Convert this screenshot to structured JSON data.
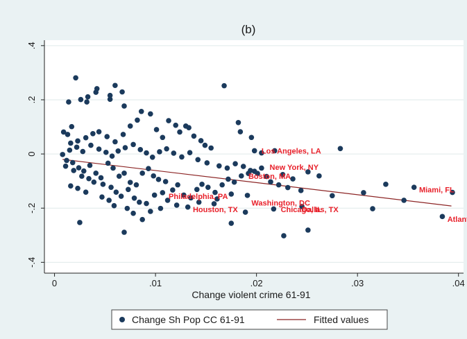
{
  "chart_data": {
    "type": "scatter",
    "title": "(b)",
    "xlabel": "Change violent crime 61-91",
    "ylabel": "",
    "xlim": [
      -0.001,
      0.0405
    ],
    "ylim": [
      -0.44,
      0.42
    ],
    "x_ticks": [
      0,
      0.01,
      0.02,
      0.03,
      0.04
    ],
    "x_tick_labels": [
      "0",
      ".01",
      ".02",
      ".03",
      ".04"
    ],
    "y_ticks": [
      -0.4,
      -0.2,
      0,
      0.2,
      0.4
    ],
    "y_tick_labels": [
      "-.4",
      "-.2",
      "0",
      ".2",
      ".4"
    ],
    "grid": "horizontal",
    "legend_position": "bottom",
    "colors": {
      "points": "#1b3a5c",
      "fit_line": "#8b2323",
      "labels": "#e8202a",
      "plot_bg": "#ffffff",
      "page_bg": "#eaf2f3"
    },
    "series": [
      {
        "name": "Change Sh Pop CC 61-91",
        "kind": "scatter",
        "points": [
          [
            0.0009,
            0.081
          ],
          [
            0.0013,
            0.072
          ],
          [
            0.0017,
            0.101
          ],
          [
            0.0021,
            0.281
          ],
          [
            0.0014,
            0.192
          ],
          [
            0.0026,
            0.201
          ],
          [
            0.0033,
            0.211
          ],
          [
            0.0032,
            0.192
          ],
          [
            0.0042,
            0.241
          ],
          [
            0.0041,
            0.228
          ],
          [
            0.0055,
            0.216
          ],
          [
            0.006,
            0.253
          ],
          [
            0.0067,
            0.229
          ],
          [
            0.0069,
            0.177
          ],
          [
            0.0055,
            0.202
          ],
          [
            0.0016,
            0.04
          ],
          [
            0.0023,
            0.048
          ],
          [
            0.0031,
            0.06
          ],
          [
            0.0038,
            0.075
          ],
          [
            0.0044,
            0.082
          ],
          [
            0.0052,
            0.064
          ],
          [
            0.006,
            0.045
          ],
          [
            0.0068,
            0.072
          ],
          [
            0.0075,
            0.103
          ],
          [
            0.0082,
            0.125
          ],
          [
            0.0086,
            0.157
          ],
          [
            0.0095,
            0.148
          ],
          [
            0.0101,
            0.09
          ],
          [
            0.0107,
            0.061
          ],
          [
            0.0113,
            0.123
          ],
          [
            0.012,
            0.106
          ],
          [
            0.0124,
            0.081
          ],
          [
            0.013,
            0.103
          ],
          [
            0.0133,
            0.097
          ],
          [
            0.0138,
            0.066
          ],
          [
            0.0145,
            0.049
          ],
          [
            0.0149,
            0.032
          ],
          [
            0.0155,
            0.022
          ],
          [
            0.0168,
            0.252
          ],
          [
            0.0182,
            0.116
          ],
          [
            0.0184,
            0.082
          ],
          [
            0.0195,
            0.061
          ],
          [
            0.0198,
            0.012
          ],
          [
            0.0205,
            0.004
          ],
          [
            0.0218,
            0.012
          ],
          [
            0.0283,
            0.02
          ],
          [
            0.0012,
            -0.024
          ],
          [
            0.0018,
            -0.032
          ],
          [
            0.0024,
            -0.051
          ],
          [
            0.0029,
            -0.063
          ],
          [
            0.0035,
            -0.042
          ],
          [
            0.0041,
            -0.071
          ],
          [
            0.0046,
            -0.088
          ],
          [
            0.0053,
            -0.034
          ],
          [
            0.0058,
            -0.052
          ],
          [
            0.0064,
            -0.082
          ],
          [
            0.0069,
            -0.071
          ],
          [
            0.0075,
            -0.105
          ],
          [
            0.0081,
            -0.114
          ],
          [
            0.0087,
            -0.071
          ],
          [
            0.0093,
            -0.054
          ],
          [
            0.0098,
            -0.081
          ],
          [
            0.0103,
            -0.094
          ],
          [
            0.011,
            -0.102
          ],
          [
            0.0117,
            -0.133
          ],
          [
            0.0122,
            -0.114
          ],
          [
            0.0128,
            -0.152
          ],
          [
            0.0135,
            -0.162
          ],
          [
            0.0141,
            -0.131
          ],
          [
            0.0146,
            -0.112
          ],
          [
            0.0152,
            -0.123
          ],
          [
            0.0159,
            -0.142
          ],
          [
            0.0166,
            -0.114
          ],
          [
            0.0172,
            -0.093
          ],
          [
            0.0178,
            -0.104
          ],
          [
            0.0185,
            -0.081
          ],
          [
            0.0192,
            -0.072
          ],
          [
            0.0198,
            -0.064
          ],
          [
            0.0205,
            -0.052
          ],
          [
            0.0214,
            -0.103
          ],
          [
            0.0222,
            -0.114
          ],
          [
            0.0231,
            -0.124
          ],
          [
            0.0244,
            -0.135
          ],
          [
            0.0251,
            -0.066
          ],
          [
            0.0262,
            -0.081
          ],
          [
            0.0275,
            -0.154
          ],
          [
            0.0306,
            -0.143
          ],
          [
            0.0328,
            -0.112
          ],
          [
            0.0356,
            -0.123
          ],
          [
            0.0394,
            -0.142
          ],
          [
            0.0346,
            -0.171
          ],
          [
            0.0315,
            -0.202
          ],
          [
            0.0384,
            -0.231
          ],
          [
            0.0251,
            -0.281
          ],
          [
            0.0227,
            -0.302
          ],
          [
            0.0175,
            -0.256
          ],
          [
            0.0069,
            -0.289
          ],
          [
            0.0025,
            -0.253
          ],
          [
            0.0087,
            -0.242
          ],
          [
            0.0105,
            -0.201
          ],
          [
            0.0132,
            -0.196
          ],
          [
            0.0158,
            -0.184
          ],
          [
            0.0189,
            -0.215
          ],
          [
            0.0217,
            -0.203
          ],
          [
            0.0245,
            -0.194
          ],
          [
            0.0008,
            -0.002
          ],
          [
            0.0015,
            0.014
          ],
          [
            0.0022,
            0.025
          ],
          [
            0.0028,
            0.009
          ],
          [
            0.0036,
            0.032
          ],
          [
            0.0044,
            0.018
          ],
          [
            0.0051,
            0.006
          ],
          [
            0.0057,
            -0.008
          ],
          [
            0.0063,
            0.011
          ],
          [
            0.007,
            0.023
          ],
          [
            0.0078,
            0.035
          ],
          [
            0.0085,
            0.016
          ],
          [
            0.0091,
            0.004
          ],
          [
            0.0097,
            -0.012
          ],
          [
            0.0104,
            0.008
          ],
          [
            0.0111,
            0.019
          ],
          [
            0.0118,
            0.003
          ],
          [
            0.0126,
            -0.011
          ],
          [
            0.0134,
            0.005
          ],
          [
            0.0142,
            -0.021
          ],
          [
            0.0151,
            -0.033
          ],
          [
            0.0163,
            -0.044
          ],
          [
            0.0171,
            -0.052
          ],
          [
            0.0179,
            -0.036
          ],
          [
            0.0187,
            -0.046
          ],
          [
            0.0194,
            -0.061
          ],
          [
            0.0201,
            -0.072
          ],
          [
            0.021,
            -0.083
          ],
          [
            0.0226,
            -0.076
          ],
          [
            0.0236,
            -0.092
          ],
          [
            0.0011,
            -0.045
          ],
          [
            0.0019,
            -0.061
          ],
          [
            0.0027,
            -0.082
          ],
          [
            0.0034,
            -0.091
          ],
          [
            0.0039,
            -0.104
          ],
          [
            0.0048,
            -0.112
          ],
          [
            0.0056,
            -0.123
          ],
          [
            0.0061,
            -0.141
          ],
          [
            0.0066,
            -0.156
          ],
          [
            0.0073,
            -0.131
          ],
          [
            0.0079,
            -0.163
          ],
          [
            0.0084,
            -0.178
          ],
          [
            0.0091,
            -0.183
          ],
          [
            0.0099,
            -0.152
          ],
          [
            0.0107,
            -0.143
          ],
          [
            0.0016,
            -0.118
          ],
          [
            0.0023,
            -0.127
          ],
          [
            0.0031,
            -0.141
          ],
          [
            0.0047,
            -0.159
          ],
          [
            0.0054,
            -0.171
          ],
          [
            0.0059,
            -0.191
          ],
          [
            0.0072,
            -0.201
          ],
          [
            0.0078,
            -0.219
          ],
          [
            0.0095,
            -0.212
          ],
          [
            0.0112,
            -0.171
          ],
          [
            0.0121,
            -0.189
          ],
          [
            0.0143,
            -0.178
          ],
          [
            0.0161,
            -0.166
          ],
          [
            0.0175,
            -0.148
          ],
          [
            0.0191,
            -0.153
          ]
        ]
      },
      {
        "name": "Fitted values",
        "kind": "line",
        "points": [
          [
            0.0008,
            -0.02
          ],
          [
            0.0393,
            -0.192
          ]
        ]
      }
    ],
    "labels": [
      {
        "text": "Los Angeles, LA",
        "x": 0.0205,
        "y": 0.012
      },
      {
        "text": "New York, NY",
        "x": 0.0213,
        "y": -0.048
      },
      {
        "text": "Boston, MA",
        "x": 0.0192,
        "y": -0.082
      },
      {
        "text": "Miami, FL",
        "x": 0.0361,
        "y": -0.132
      },
      {
        "text": "Philadelphia, PA",
        "x": 0.0113,
        "y": -0.156
      },
      {
        "text": "Washington, DC",
        "x": 0.0195,
        "y": -0.18
      },
      {
        "text": "Chicago, IL",
        "x": 0.0224,
        "y": -0.205
      },
      {
        "text": "Dallas, TX",
        "x": 0.0245,
        "y": -0.205
      },
      {
        "text": "Houston, TX",
        "x": 0.0137,
        "y": -0.205
      },
      {
        "text": "Atlanta",
        "x": 0.0389,
        "y": -0.24
      }
    ]
  }
}
